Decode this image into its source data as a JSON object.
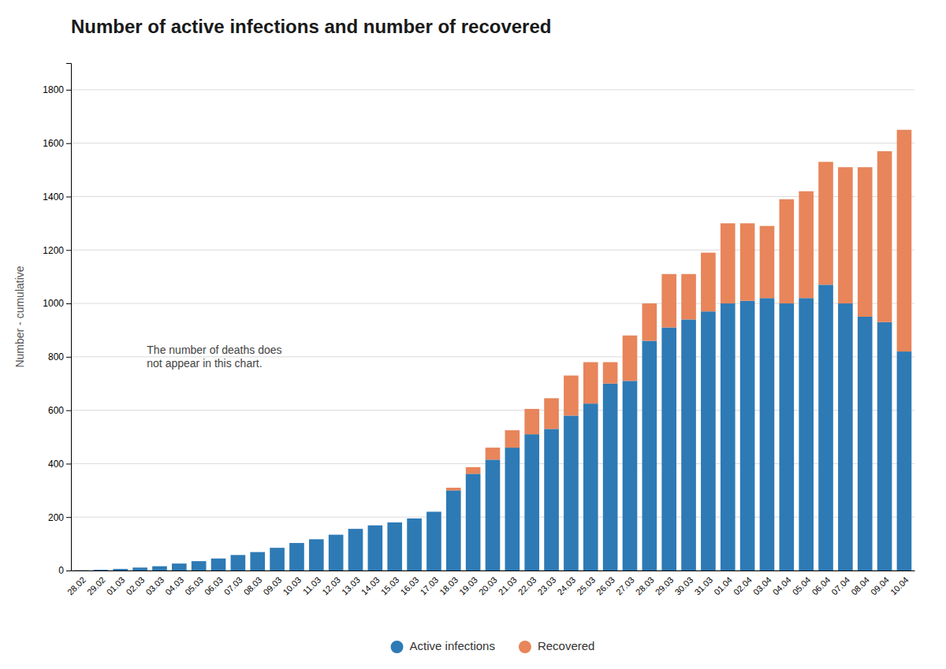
{
  "chart_data": {
    "type": "bar",
    "stacked": true,
    "title": "Number of active infections and number of recovered",
    "ylabel": "Number - cumulative",
    "annotation": "The number of deaths does\nnot appear in this chart.",
    "categories": [
      "28.02",
      "29.02",
      "01.03",
      "02.03",
      "03.03",
      "04.03",
      "05.03",
      "06.03",
      "07.03",
      "08.03",
      "09.03",
      "10.03",
      "11.03",
      "12.03",
      "13.03",
      "14.03",
      "15.03",
      "16.03",
      "17.03",
      "18.03",
      "19.03",
      "20.03",
      "21.03",
      "22.03",
      "23.03",
      "24.03",
      "25.03",
      "26.03",
      "27.03",
      "28.03",
      "29.03",
      "30.03",
      "31.03",
      "01.04",
      "02.04",
      "03.04",
      "04.04",
      "05.04",
      "06.04",
      "07.04",
      "08.04",
      "09.04",
      "10.04"
    ],
    "series": [
      {
        "name": "Active infections",
        "color": "#2d7ab5",
        "values": [
          1,
          3,
          6,
          11,
          16,
          26,
          35,
          45,
          58,
          69,
          85,
          103,
          117,
          134,
          156,
          169,
          180,
          195,
          220,
          300,
          362,
          415,
          460,
          510,
          530,
          580,
          625,
          700,
          710,
          860,
          910,
          940,
          970,
          1000,
          1010,
          1020,
          1000,
          1020,
          1070,
          1000,
          950,
          930,
          820
        ]
      },
      {
        "name": "Recovered",
        "color": "#e8855a",
        "values": [
          0,
          0,
          0,
          0,
          0,
          0,
          0,
          0,
          0,
          0,
          0,
          0,
          0,
          0,
          0,
          0,
          0,
          0,
          0,
          10,
          25,
          45,
          65,
          95,
          115,
          150,
          155,
          80,
          170,
          140,
          200,
          170,
          220,
          300,
          290,
          270,
          390,
          400,
          460,
          510,
          560,
          640,
          830
        ]
      }
    ],
    "ylim": [
      0,
      1900
    ],
    "yticks": [
      0,
      200,
      400,
      600,
      800,
      1000,
      1200,
      1400,
      1600,
      1800
    ],
    "grid": true,
    "legend": "bottom"
  }
}
